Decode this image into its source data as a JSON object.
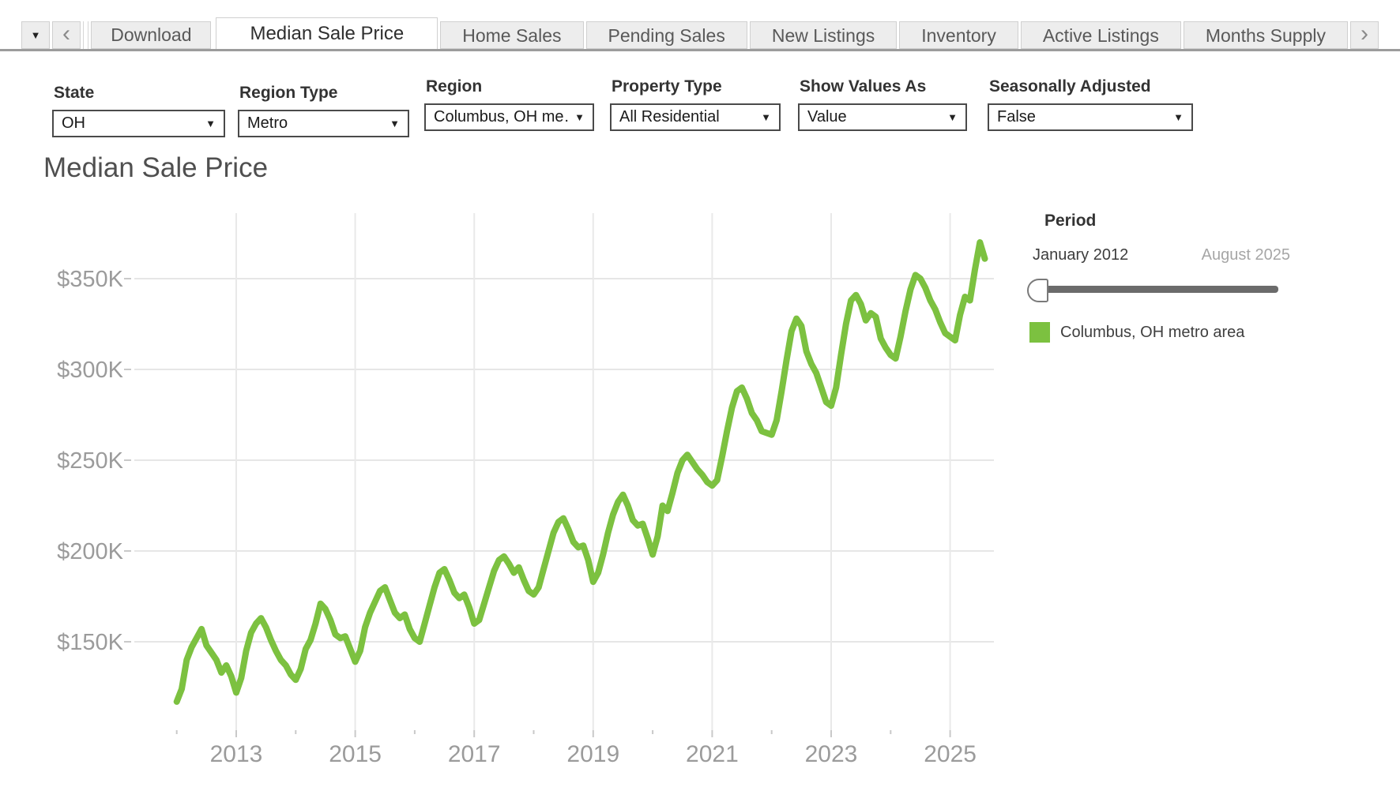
{
  "tabbar": {
    "menu_button_icon": "caret-down",
    "scroll_left_icon": "chevron-left",
    "scroll_right_icon": "chevron-right",
    "download_label": "Download",
    "tabs": [
      {
        "label": "Median Sale Price",
        "active": true
      },
      {
        "label": "Home Sales",
        "active": false
      },
      {
        "label": "Pending Sales",
        "active": false
      },
      {
        "label": "New Listings",
        "active": false
      },
      {
        "label": "Inventory",
        "active": false
      },
      {
        "label": "Active Listings",
        "active": false
      },
      {
        "label": "Months Supply",
        "active": false
      }
    ]
  },
  "filters": [
    {
      "label": "State",
      "value": "OH"
    },
    {
      "label": "Region Type",
      "value": "Metro"
    },
    {
      "label": "Region",
      "value": "Columbus, OH me…"
    },
    {
      "label": "Property Type",
      "value": "All Residential"
    },
    {
      "label": "Show Values As",
      "value": "Value"
    },
    {
      "label": "Seasonally Adjusted",
      "value": "False"
    }
  ],
  "period_control": {
    "label": "Period",
    "start": "January 2012",
    "end": "August 2025"
  },
  "chart_data": {
    "type": "line",
    "title": "Median Sale Price",
    "series_name": "Columbus, OH metro area",
    "color": "#7cc140",
    "x_start": "2012-01",
    "x_end": "2025-08",
    "x_tick_years": [
      2013,
      2015,
      2017,
      2019,
      2021,
      2023,
      2025
    ],
    "x_minor_tick_years": [
      2012,
      2013,
      2014,
      2015,
      2016,
      2017,
      2018,
      2019,
      2020,
      2021,
      2022,
      2023,
      2024,
      2025
    ],
    "y_tick_values": [
      350,
      300,
      250,
      200,
      150
    ],
    "y_tick_labels": [
      "$350K",
      "$300K",
      "$250K",
      "$200K",
      "$150K"
    ],
    "ylim_thousands": [
      100,
      390
    ],
    "unit": "USD thousands",
    "grid": true,
    "legend_position": "right",
    "values_thousands": [
      117,
      124,
      140,
      147,
      152,
      157,
      148,
      144,
      140,
      133,
      137,
      131,
      122,
      130,
      145,
      155,
      160,
      163,
      158,
      151,
      145,
      140,
      137,
      132,
      129,
      135,
      146,
      151,
      160,
      171,
      168,
      162,
      154,
      152,
      153,
      146,
      139,
      145,
      158,
      166,
      172,
      178,
      180,
      173,
      166,
      163,
      165,
      157,
      152,
      150,
      160,
      170,
      180,
      188,
      190,
      184,
      177,
      174,
      176,
      169,
      160,
      162,
      171,
      180,
      189,
      195,
      197,
      193,
      188,
      191,
      184,
      178,
      176,
      180,
      190,
      200,
      210,
      216,
      218,
      212,
      205,
      202,
      203,
      195,
      183,
      188,
      198,
      210,
      220,
      227,
      231,
      225,
      217,
      214,
      215,
      207,
      198,
      208,
      225,
      222,
      232,
      243,
      250,
      253,
      249,
      245,
      242,
      238,
      236,
      239,
      252,
      266,
      279,
      288,
      290,
      284,
      276,
      272,
      266,
      265,
      264,
      272,
      288,
      305,
      321,
      328,
      324,
      310,
      303,
      298,
      290,
      282,
      280,
      290,
      308,
      325,
      338,
      341,
      336,
      327,
      331,
      329,
      317,
      312,
      308,
      306,
      318,
      332,
      344,
      352,
      350,
      345,
      338,
      333,
      326,
      320,
      318,
      316,
      330,
      340,
      338,
      355,
      370,
      361
    ]
  }
}
